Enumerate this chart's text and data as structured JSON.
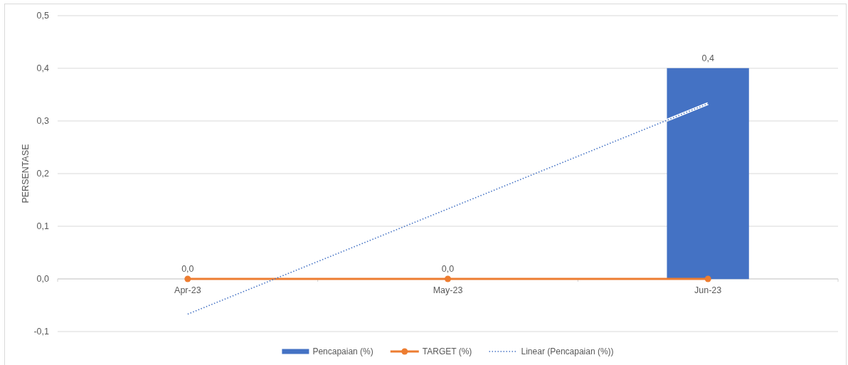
{
  "chart_data": {
    "type": "bar",
    "ylabel": "PERSENTASE",
    "categories": [
      "Apr-23",
      "May-23",
      "Jun-23"
    ],
    "series": [
      {
        "name": "Pencapaian (%)",
        "color": "#4472c4",
        "values": [
          0,
          0,
          0.4
        ],
        "value_labels": [
          "0,0",
          "0,0",
          "0,4"
        ]
      },
      {
        "name": "TARGET (%)",
        "type": "line",
        "color": "#ed7d31",
        "values": [
          0,
          0,
          0
        ],
        "marker": "circle"
      },
      {
        "name": "Linear (Pencapaian (%))",
        "type": "line",
        "color": "#4472c4",
        "x": [
          "Apr-23",
          "Jun-23"
        ],
        "values": [
          -0.067,
          0.333
        ],
        "line_style": "dotted"
      }
    ],
    "ylim": [
      -0.1,
      0.5
    ],
    "yticks": [
      {
        "value": -0.1,
        "label": "-0,1"
      },
      {
        "value": 0,
        "label": "0,0"
      },
      {
        "value": 0.1,
        "label": "0,1"
      },
      {
        "value": 0.2,
        "label": "0,2"
      },
      {
        "value": 0.3,
        "label": "0,3"
      },
      {
        "value": 0.4,
        "label": "0,4"
      },
      {
        "value": 0.5,
        "label": "0,5"
      }
    ],
    "grid": "y",
    "legend": "bottom"
  }
}
